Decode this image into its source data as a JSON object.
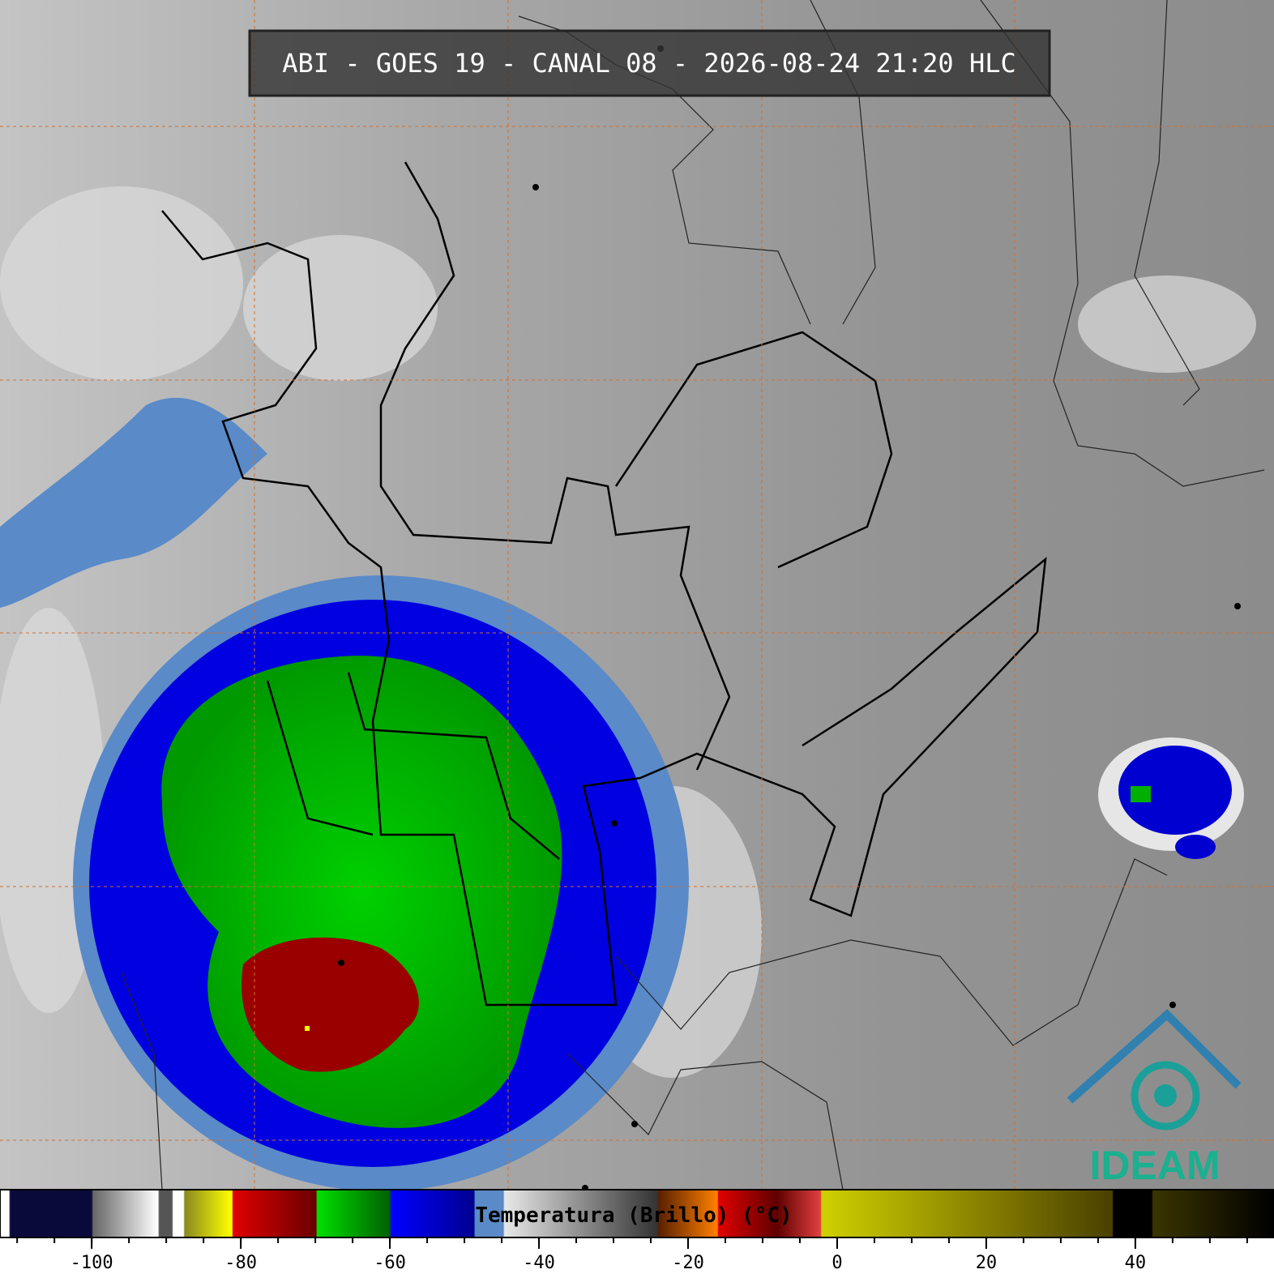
{
  "title": "ABI - GOES 19 - CANAL 08 - 2026-08-24 21:20 HLC",
  "logo": "IDEAM",
  "colorbar": {
    "label": "Temperatura (Brillo) (°C)",
    "range": [
      -112.3,
      58.6
    ],
    "ticks": [
      -100,
      -80,
      -60,
      -40,
      -20,
      0,
      20,
      40
    ],
    "minor_step": 5
  }
}
